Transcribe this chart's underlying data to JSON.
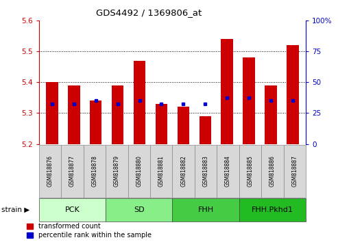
{
  "title": "GDS4492 / 1369806_at",
  "samples": [
    "GSM818876",
    "GSM818877",
    "GSM818878",
    "GSM818879",
    "GSM818880",
    "GSM818881",
    "GSM818882",
    "GSM818883",
    "GSM818884",
    "GSM818885",
    "GSM818886",
    "GSM818887"
  ],
  "transformed_count": [
    5.4,
    5.39,
    5.34,
    5.39,
    5.47,
    5.33,
    5.32,
    5.29,
    5.54,
    5.48,
    5.39,
    5.52
  ],
  "percentile_rank": [
    5.33,
    5.33,
    5.34,
    5.33,
    5.34,
    5.33,
    5.33,
    5.33,
    5.35,
    5.35,
    5.34,
    5.34
  ],
  "ymin": 5.2,
  "ymax": 5.6,
  "yticks": [
    5.2,
    5.3,
    5.4,
    5.5,
    5.6
  ],
  "right_yticks": [
    0,
    25,
    50,
    75,
    100
  ],
  "bar_color": "#cc0000",
  "dot_color": "#0000cc",
  "bar_width": 0.55,
  "groups": [
    {
      "label": "PCK",
      "start": 0,
      "end": 3,
      "color": "#ccffcc"
    },
    {
      "label": "SD",
      "start": 3,
      "end": 6,
      "color": "#88ee88"
    },
    {
      "label": "FHH",
      "start": 6,
      "end": 9,
      "color": "#44cc44"
    },
    {
      "label": "FHH.Pkhd1",
      "start": 9,
      "end": 12,
      "color": "#22bb22"
    }
  ],
  "legend_items": [
    {
      "label": "transformed count",
      "color": "#cc0000"
    },
    {
      "label": "percentile rank within the sample",
      "color": "#0000cc"
    }
  ],
  "left_axis_color": "#cc0000",
  "right_axis_color": "#0000cc"
}
